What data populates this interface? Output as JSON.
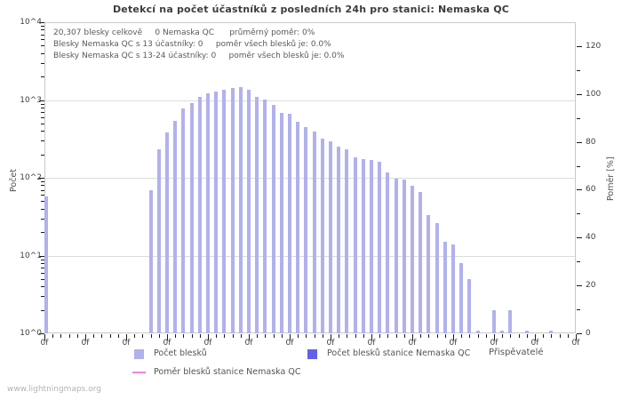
{
  "title": "Detekcí na počet účastníků z posledních 24h pro stanici: Nemaska QC",
  "info": {
    "line1": "20,307 blesky celkově     0 Nemaska QC      průměrný poměr: 0%",
    "line2": "Blesky Nemaska QC s 13 účastníky: 0     poměr všech blesků je: 0.0%",
    "line3": "Blesky Nemaska QC s 13-24 účastníky: 0     poměr všech blesků je: 0.0%"
  },
  "axes": {
    "left": {
      "label": "Počet",
      "ticks": [
        "10^0",
        "10^1",
        "10^2",
        "10^3",
        "10^4"
      ],
      "scale": "log"
    },
    "right": {
      "label": "Poměr [%]",
      "ticks": [
        0,
        20,
        40,
        60,
        80,
        100,
        120
      ]
    },
    "x": {
      "label": "Přispěvatelé",
      "major_tick_label": "0f",
      "major_tick_count": 14
    }
  },
  "legend": [
    {
      "label": "Počet blesků",
      "color": "#b1b1ee",
      "type": "box"
    },
    {
      "label": "Počet blesků stanice Nemaska QC",
      "color": "#6161e8",
      "type": "box"
    },
    {
      "label": "Poměr blesků stanice Nemaska QC",
      "color": "#ee82ee",
      "type": "line"
    }
  ],
  "watermark": "www.lightningmaps.org",
  "colors": {
    "bar": "#b1b1ee",
    "station_bar": "#6161e8",
    "ratio_line": "#ee82ee",
    "grid": "#dcdcdc",
    "border": "#c9c9c9"
  },
  "chart_data": {
    "type": "bar",
    "title": "Detekcí na počet účastníků z posledních 24h pro stanici: Nemaska QC",
    "xlabel": "Přispěvatelé",
    "ylabel_left": "Počet",
    "ylabel_right": "Poměr [%]",
    "y_scale_left": "log",
    "ylim_left": [
      1,
      10000
    ],
    "ylim_right": [
      0,
      130
    ],
    "x_range": [
      0,
      65
    ],
    "x_tick_label_text": "0f",
    "grid": true,
    "legend_position": "bottom",
    "total_flashes": 20307,
    "station_flashes": 0,
    "average_ratio_pct": 0,
    "series": [
      {
        "name": "Počet blesků",
        "color": "#b1b1ee",
        "points": [
          [
            0,
            57
          ],
          [
            13,
            69
          ],
          [
            14,
            231
          ],
          [
            15,
            380
          ],
          [
            16,
            540
          ],
          [
            17,
            786
          ],
          [
            18,
            912
          ],
          [
            19,
            1089
          ],
          [
            20,
            1218
          ],
          [
            21,
            1288
          ],
          [
            22,
            1365
          ],
          [
            23,
            1426
          ],
          [
            24,
            1466
          ],
          [
            25,
            1365
          ],
          [
            26,
            1089
          ],
          [
            27,
            1023
          ],
          [
            28,
            873
          ],
          [
            29,
            689
          ],
          [
            30,
            661
          ],
          [
            31,
            521
          ],
          [
            32,
            445
          ],
          [
            33,
            391
          ],
          [
            34,
            321
          ],
          [
            35,
            295
          ],
          [
            36,
            251
          ],
          [
            37,
            231
          ],
          [
            38,
            185
          ],
          [
            39,
            174
          ],
          [
            40,
            170
          ],
          [
            41,
            160
          ],
          [
            42,
            117
          ],
          [
            43,
            98
          ],
          [
            44,
            94
          ],
          [
            45,
            78
          ],
          [
            46,
            66
          ],
          [
            47,
            33
          ],
          [
            48,
            26
          ],
          [
            49,
            15
          ],
          [
            50,
            14
          ],
          [
            51,
            8
          ],
          [
            52,
            5
          ],
          [
            53,
            1
          ],
          [
            55,
            2
          ],
          [
            56,
            1
          ],
          [
            57,
            2
          ],
          [
            59,
            1
          ],
          [
            62,
            1
          ]
        ]
      },
      {
        "name": "Počet blesků stanice Nemaska QC",
        "color": "#6161e8",
        "points": []
      },
      {
        "name": "Poměr blesků stanice Nemaska QC",
        "color": "#ee82ee",
        "type": "line",
        "points": []
      }
    ]
  }
}
